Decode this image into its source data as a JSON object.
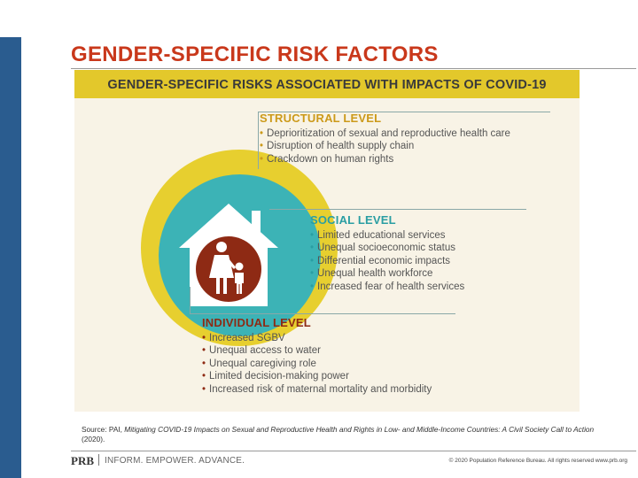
{
  "slide": {
    "title": "GENDER-SPECIFIC RISK FACTORS",
    "accent_color": "#c9381b",
    "sidebar_color": "#2a5c8f"
  },
  "infographic": {
    "header": "GENDER-SPECIFIC RISKS ASSOCIATED WITH IMPACTS OF COVID-19",
    "colors": {
      "outer": "#e7cf2f",
      "middle": "#3cb3b6",
      "inner": "#8e2a14",
      "house": "#ffffff"
    },
    "icons": [
      "house-icon",
      "mother-and-child-icon"
    ],
    "levels": [
      {
        "heading": "STRUCTURAL LEVEL",
        "items": [
          "Deprioritization of sexual and reproductive health care",
          "Disruption of health supply chain",
          "Crackdown on human rights"
        ]
      },
      {
        "heading": "SOCIAL LEVEL",
        "items": [
          "Limited educational services",
          "Unequal socioeconomic status",
          "Differential economic impacts",
          "Unequal health workforce",
          "Increased fear of health services"
        ]
      },
      {
        "heading": "INDIVIDUAL LEVEL",
        "items": [
          "Increased SGBV",
          "Unequal access to water",
          "Unequal caregiving role",
          "Limited decision-making power",
          "Increased risk of maternal mortality and morbidity"
        ]
      }
    ]
  },
  "source": {
    "prefix": "Source: PAI, ",
    "title": "Mitigating COVID-19 Impacts on Sexual and Reproductive Health and Rights in Low- and Middle-Income Countries: A Civil Society Call to Action",
    "suffix": " (2020)."
  },
  "footer": {
    "logo": "PRB",
    "tagline": "INFORM. EMPOWER. ADVANCE.",
    "copyright": "© 2020 Population Reference Bureau. All rights reserved www.prb.org"
  }
}
